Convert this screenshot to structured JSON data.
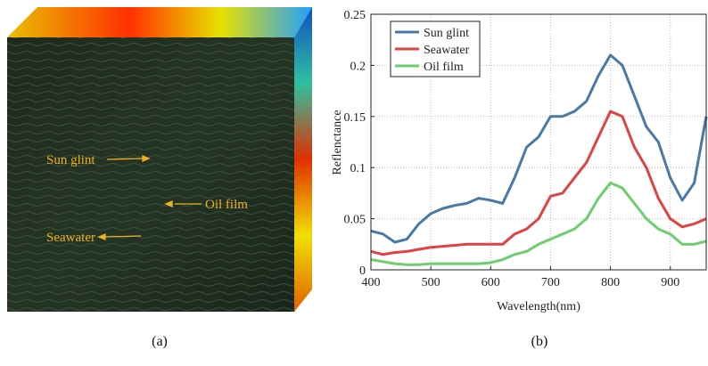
{
  "panel_a": {
    "labels": [
      "Sun glint",
      "Oil film",
      "Seawater"
    ],
    "caption": "(a)"
  },
  "chart_data": {
    "type": "line",
    "caption": "(b)",
    "x_label": "Wavelength(nm)",
    "y_label": "Reflenctance",
    "x": [
      400,
      420,
      440,
      460,
      480,
      500,
      520,
      540,
      560,
      580,
      600,
      620,
      640,
      660,
      680,
      700,
      720,
      740,
      760,
      780,
      800,
      820,
      840,
      860,
      880,
      900,
      920,
      940,
      960
    ],
    "series": [
      {
        "name": "Sun glint",
        "color": "#4a79a8",
        "values": [
          0.038,
          0.035,
          0.027,
          0.03,
          0.045,
          0.055,
          0.06,
          0.063,
          0.065,
          0.07,
          0.068,
          0.065,
          0.09,
          0.12,
          0.13,
          0.15,
          0.15,
          0.155,
          0.165,
          0.19,
          0.21,
          0.2,
          0.17,
          0.14,
          0.125,
          0.09,
          0.068,
          0.085,
          0.15
        ]
      },
      {
        "name": "Seawater",
        "color": "#e04242",
        "values": [
          0.018,
          0.015,
          0.017,
          0.018,
          0.02,
          0.022,
          0.023,
          0.024,
          0.025,
          0.025,
          0.025,
          0.025,
          0.035,
          0.04,
          0.05,
          0.072,
          0.075,
          0.09,
          0.105,
          0.13,
          0.155,
          0.15,
          0.12,
          0.1,
          0.07,
          0.05,
          0.042,
          0.045,
          0.05
        ]
      },
      {
        "name": "Oil film",
        "color": "#6cce6c",
        "values": [
          0.01,
          0.008,
          0.006,
          0.005,
          0.005,
          0.006,
          0.006,
          0.006,
          0.006,
          0.006,
          0.007,
          0.01,
          0.015,
          0.018,
          0.025,
          0.03,
          0.035,
          0.04,
          0.05,
          0.07,
          0.085,
          0.08,
          0.065,
          0.05,
          0.04,
          0.035,
          0.025,
          0.025,
          0.028
        ]
      }
    ],
    "xlim": [
      400,
      960
    ],
    "xticks": [
      400,
      500,
      600,
      700,
      800,
      900
    ],
    "ylim": [
      0,
      0.25
    ],
    "yticks": [
      0,
      0.05,
      0.1,
      0.15,
      0.2,
      0.25
    ],
    "grid": true,
    "legend": "upper-left"
  }
}
